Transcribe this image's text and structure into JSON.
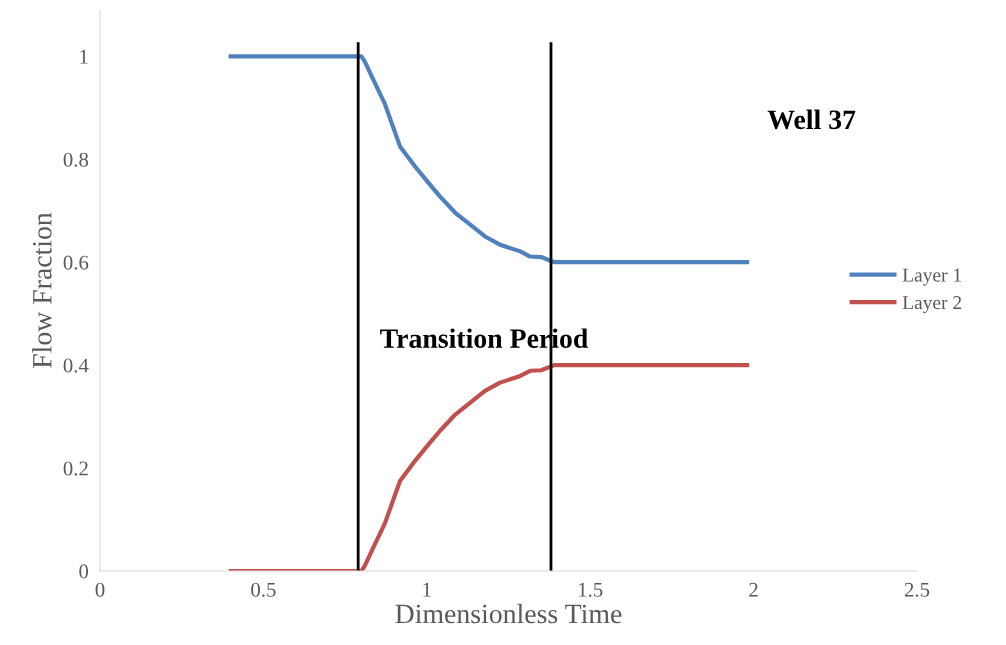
{
  "chart_data": {
    "type": "line",
    "xlabel": "Dimensionless Time",
    "ylabel": "Flow Fraction",
    "xlim": [
      0,
      2.5
    ],
    "xticks": [
      0,
      0.5,
      1,
      1.5,
      2,
      2.5
    ],
    "ylim": [
      0,
      1.09
    ],
    "yticks": [
      0,
      0.2,
      0.4,
      0.6,
      0.8,
      1
    ],
    "grid": false,
    "legend": "right",
    "marker": "none",
    "line_style": "solid",
    "series": [
      {
        "name": "Layer 1",
        "color": "#4f81bd",
        "x": [
          0.4,
          0.8,
          0.81,
          0.833,
          0.872,
          0.918,
          0.964,
          1.004,
          1.04,
          1.087,
          1.133,
          1.178,
          1.224,
          1.286,
          1.316,
          1.35,
          1.39,
          1.98
        ],
        "values": [
          1,
          1,
          0.99,
          0.959,
          0.907,
          0.825,
          0.786,
          0.755,
          0.728,
          0.696,
          0.673,
          0.65,
          0.634,
          0.621,
          0.611,
          0.61,
          0.6,
          0.6
        ]
      },
      {
        "name": "Layer 2",
        "color": "#c0504d",
        "x": [
          0.4,
          0.8,
          0.81,
          0.833,
          0.872,
          0.918,
          0.964,
          1.004,
          1.04,
          1.087,
          1.133,
          1.178,
          1.224,
          1.286,
          1.316,
          1.35,
          1.39,
          1.98
        ],
        "values": [
          0,
          0,
          0.01,
          0.041,
          0.093,
          0.175,
          0.214,
          0.245,
          0.272,
          0.304,
          0.327,
          0.35,
          0.366,
          0.379,
          0.389,
          0.39,
          0.4,
          0.4
        ]
      }
    ],
    "ref_lines": [
      {
        "axis": "x",
        "value": 0.79,
        "color": "#000000"
      },
      {
        "axis": "x",
        "value": 1.38,
        "color": "#000000"
      }
    ],
    "annotations": [
      "Transition Period",
      "Well 37"
    ]
  }
}
